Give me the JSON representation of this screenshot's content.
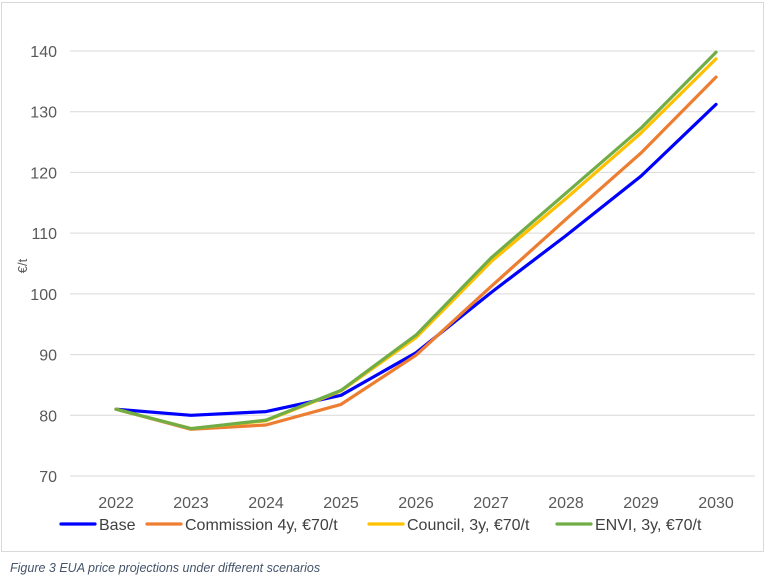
{
  "caption": "Figure 3 EUA price projections under different scenarios",
  "chart_data": {
    "type": "line",
    "title": "",
    "xlabel": "",
    "ylabel": "€/t",
    "categories": [
      "2022",
      "2023",
      "2024",
      "2025",
      "2026",
      "2027",
      "2028",
      "2029",
      "2030"
    ],
    "ylim": [
      70,
      140
    ],
    "yticks": [
      70,
      80,
      90,
      100,
      110,
      120,
      130,
      140
    ],
    "grid": true,
    "legend_position": "bottom",
    "series": [
      {
        "name": "Base",
        "color": "#0000ff",
        "values": [
          81,
          80,
          80.6,
          83.3,
          90.3,
          100.2,
          109.6,
          119.4,
          131.2
        ]
      },
      {
        "name": "Commission 4y, €70/t",
        "color": "#ed7d31",
        "values": [
          81,
          77.7,
          78.4,
          81.8,
          89.9,
          101.2,
          112.3,
          123.2,
          135.7
        ]
      },
      {
        "name": "Council, 3y, €70/t",
        "color": "#ffc000",
        "values": [
          81,
          77.8,
          79.1,
          84,
          92.8,
          105.3,
          115.7,
          126.5,
          138.7
        ]
      },
      {
        "name": "ENVI, 3y, €70/t",
        "color": "#70ad47",
        "values": [
          81,
          77.8,
          79.2,
          84.1,
          93.2,
          105.9,
          116.6,
          127.3,
          139.8
        ]
      }
    ]
  }
}
